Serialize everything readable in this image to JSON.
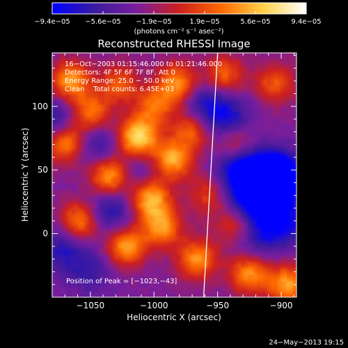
{
  "chart_data": {
    "type": "heatmap",
    "title": "Reconstructed RHESSI Image",
    "xlabel": "Heliocentric X (arcsec)",
    "ylabel": "Heliocentric Y (arcsec)",
    "xlim": [
      -1080,
      -888
    ],
    "ylim": [
      -50,
      142
    ],
    "x_ticks": [
      -1050,
      -1000,
      -950,
      -900
    ],
    "x_tick_labels": [
      "−1050",
      "−1000",
      "−950",
      "−900"
    ],
    "y_ticks": [
      0,
      50,
      100
    ],
    "y_tick_labels": [
      "0",
      "50",
      "100"
    ],
    "colorbar": {
      "range": [
        -9.4e-05,
        9.4e-05
      ],
      "tick_labels": [
        "−9.4e−05",
        "−5.6e−05",
        "−1.9e−05",
        "1.9e−05",
        "5.6e−05",
        "9.4e−05"
      ],
      "unit_label": "(photons cm⁻² s⁻¹ asec⁻²)",
      "colormap": [
        "#0000ff",
        "#3a1aa0",
        "#7a1e9c",
        "#cc1f1f",
        "#ff6a00",
        "#ffd24a",
        "#ffffff"
      ]
    },
    "info_lines": [
      "16−Oct−2003 01:15:46.000 to 01:21:46.000",
      "Detectors: 4F 5F 6F 7F 8F, Att 0",
      "Energy Range: 25.0 − 50.0 keV",
      "Clean    Total counts: 6.45E+03"
    ],
    "peak_label": "Position of Peak = [−1023,−43]",
    "peak": {
      "x": -1023,
      "y": -43
    },
    "limb_line": [
      {
        "x": -961,
        "y": -50
      },
      {
        "x": -950,
        "y": 142
      }
    ],
    "bright_sources": [
      {
        "x": -1070,
        "y": 72,
        "amp": 0.8
      },
      {
        "x": -1066,
        "y": 120,
        "amp": 0.75
      },
      {
        "x": -1058,
        "y": 10,
        "amp": 0.7
      },
      {
        "x": -1050,
        "y": 95,
        "amp": 0.65
      },
      {
        "x": -1035,
        "y": 45,
        "amp": 0.8
      },
      {
        "x": -1028,
        "y": 118,
        "amp": 0.5
      },
      {
        "x": -1022,
        "y": -10,
        "amp": 0.75
      },
      {
        "x": -1013,
        "y": 75,
        "amp": 1.0
      },
      {
        "x": -1003,
        "y": 28,
        "amp": 0.85
      },
      {
        "x": -1000,
        "y": 100,
        "amp": 0.55
      },
      {
        "x": -994,
        "y": 5,
        "amp": 0.7
      },
      {
        "x": -986,
        "y": 58,
        "amp": 0.8
      },
      {
        "x": -982,
        "y": 118,
        "amp": 0.7
      },
      {
        "x": -970,
        "y": 82,
        "amp": 0.6
      },
      {
        "x": -966,
        "y": -20,
        "amp": 0.7
      },
      {
        "x": -958,
        "y": 30,
        "amp": 0.4
      },
      {
        "x": -945,
        "y": 125,
        "amp": 0.55
      },
      {
        "x": -936,
        "y": 70,
        "amp": 0.5
      },
      {
        "x": -935,
        "y": 8,
        "amp": 0.55
      },
      {
        "x": -925,
        "y": -32,
        "amp": 0.7
      },
      {
        "x": -905,
        "y": 118,
        "amp": 0.5
      },
      {
        "x": -895,
        "y": -40,
        "amp": 0.75
      }
    ],
    "dark_sources": [
      {
        "x": -1078,
        "y": 88,
        "amp": 0.5
      },
      {
        "x": -1072,
        "y": -12,
        "amp": 0.4
      },
      {
        "x": -1035,
        "y": 18,
        "amp": 0.45
      },
      {
        "x": -1045,
        "y": 70,
        "amp": 0.35
      },
      {
        "x": -1010,
        "y": 50,
        "amp": 0.3
      },
      {
        "x": -960,
        "y": 100,
        "amp": 0.45
      },
      {
        "x": -942,
        "y": 90,
        "amp": 0.45
      },
      {
        "x": -932,
        "y": 52,
        "amp": 0.7
      },
      {
        "x": -926,
        "y": 25,
        "amp": 0.65
      },
      {
        "x": -910,
        "y": 42,
        "amp": 0.7
      },
      {
        "x": -902,
        "y": 45,
        "amp": 0.85
      },
      {
        "x": -895,
        "y": 10,
        "amp": 0.5
      },
      {
        "x": -918,
        "y": 0,
        "amp": 0.45
      },
      {
        "x": -1050,
        "y": -30,
        "amp": 0.3
      }
    ]
  },
  "footer": {
    "date": "24−May−2013 19:15"
  }
}
